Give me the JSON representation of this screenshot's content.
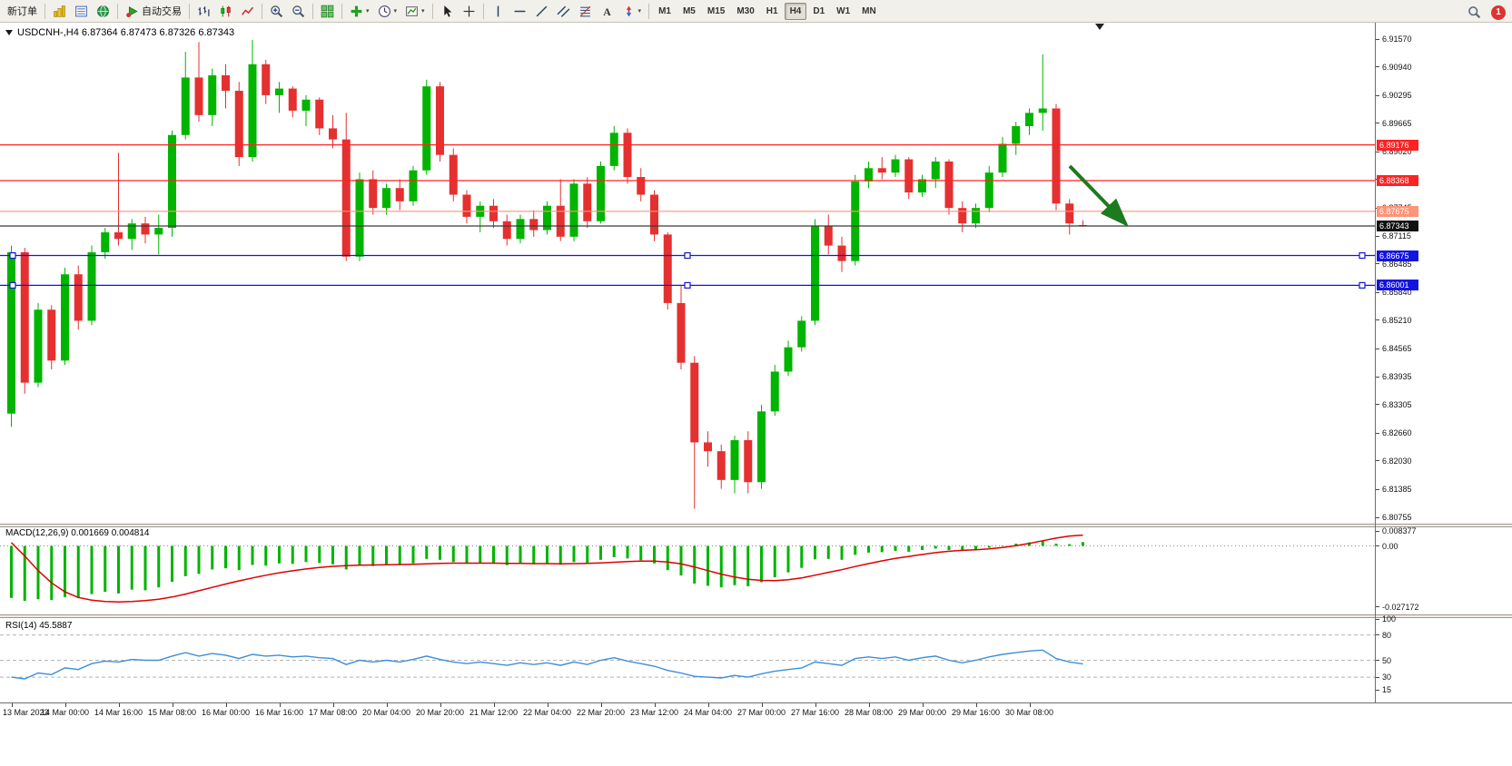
{
  "toolbar": {
    "items": [
      {
        "kind": "text",
        "name": "new-order-button",
        "label": "新订单"
      },
      {
        "kind": "sep"
      },
      {
        "kind": "icon",
        "name": "profiles-button",
        "icon": "i-profiles"
      },
      {
        "kind": "icon",
        "name": "market-watch-button",
        "icon": "i-marketwatch"
      },
      {
        "kind": "icon",
        "name": "navigator-button",
        "icon": "i-navigator"
      },
      {
        "kind": "sep"
      },
      {
        "kind": "icon",
        "name": "autotrading-button",
        "icon": "i-autotrading",
        "label": "自动交易"
      },
      {
        "kind": "sep"
      },
      {
        "kind": "icon",
        "name": "bar-chart-button",
        "icon": "i-bars"
      },
      {
        "kind": "icon",
        "name": "candlestick-chart-button",
        "icon": "i-candles"
      },
      {
        "kind": "icon",
        "name": "line-chart-button",
        "icon": "i-linechart"
      },
      {
        "kind": "sep"
      },
      {
        "kind": "icon",
        "name": "zoom-in-button",
        "icon": "i-zoomin"
      },
      {
        "kind": "icon",
        "name": "zoom-out-button",
        "icon": "i-zoomout"
      },
      {
        "kind": "sep"
      },
      {
        "kind": "icon",
        "name": "tile-windows-button",
        "icon": "i-tile"
      },
      {
        "kind": "sep"
      },
      {
        "kind": "icon",
        "name": "indicators-button",
        "icon": "i-indicators",
        "caret": true
      },
      {
        "kind": "icon",
        "name": "periods-button",
        "icon": "i-clock",
        "caret": true
      },
      {
        "kind": "icon",
        "name": "templates-button",
        "icon": "i-template",
        "caret": true
      },
      {
        "kind": "sep"
      },
      {
        "kind": "icon",
        "name": "cursor-button",
        "icon": "i-cursor"
      },
      {
        "kind": "icon",
        "name": "crosshair-button",
        "icon": "i-crosshair"
      },
      {
        "kind": "sep"
      },
      {
        "kind": "icon",
        "name": "vertical-line-button",
        "icon": "i-vline"
      },
      {
        "kind": "icon",
        "name": "horizontal-line-button",
        "icon": "i-hline"
      },
      {
        "kind": "icon",
        "name": "trendline-button",
        "icon": "i-trendline"
      },
      {
        "kind": "icon",
        "name": "channel-button",
        "icon": "i-channel"
      },
      {
        "kind": "icon",
        "name": "fibonacci-button",
        "icon": "i-fibo"
      },
      {
        "kind": "icon",
        "name": "text-tool-button",
        "icon": "i-text"
      },
      {
        "kind": "icon",
        "name": "arrows-tool-button",
        "icon": "i-arrows",
        "caret": true
      },
      {
        "kind": "sep"
      }
    ],
    "timeframes": [
      "M1",
      "M5",
      "M15",
      "M30",
      "H1",
      "H4",
      "D1",
      "W1",
      "MN"
    ],
    "active_timeframe": "H4",
    "notification_count": "1"
  },
  "colors": {
    "bull": "#00b400",
    "bear": "#e53030",
    "signal": "#e00000",
    "rsi": "#3d8fd8",
    "line_red": "#ff2222",
    "line_salmon": "#ff9478",
    "line_blue": "#1414e0",
    "line_current": "#3a3a3a",
    "arrow": "#1e7a1e"
  },
  "chart_data": [
    {
      "type": "candlestick",
      "symbol": "USDCNH-",
      "timeframe": "H4",
      "title": "USDCNH-,H4 6.87364 6.87473 6.87326 6.87343",
      "current_bar": {
        "open": 6.87364,
        "high": 6.87473,
        "low": 6.87326,
        "close": 6.87343
      },
      "ylim": [
        6.806,
        6.9182
      ],
      "grid": false,
      "price_ticks": [
        "6.91570",
        "6.90940",
        "6.90295",
        "6.89665",
        "6.89020",
        "6.88390",
        "6.87745",
        "6.87115",
        "6.86485",
        "6.85840",
        "6.85210",
        "6.84565",
        "6.83935",
        "6.83305",
        "6.82660",
        "6.82030",
        "6.81385",
        "6.80755"
      ],
      "x_labels": [
        "13 Mar 2023",
        "14 Mar 00:00",
        "14 Mar 16:00",
        "15 Mar 08:00",
        "16 Mar 00:00",
        "16 Mar 16:00",
        "17 Mar 08:00",
        "20 Mar 04:00",
        "20 Mar 20:00",
        "21 Mar 12:00",
        "22 Mar 04:00",
        "22 Mar 20:00",
        "23 Mar 12:00",
        "24 Mar 04:00",
        "27 Mar 00:00",
        "27 Mar 16:00",
        "28 Mar 08:00",
        "29 Mar 00:00",
        "29 Mar 16:00",
        "30 Mar 08:00"
      ],
      "lines": [
        {
          "name": "resistance-line-1",
          "price": 6.89176,
          "color": "#ff2222",
          "badge": "6.89176"
        },
        {
          "name": "resistance-line-2",
          "price": 6.88368,
          "color": "#ff2222",
          "badge": "6.88368"
        },
        {
          "name": "pivot-line",
          "price": 6.87675,
          "color": "#ff9478",
          "badge": "6.87675"
        },
        {
          "name": "current-price-line",
          "price": 6.87343,
          "color": "#3a3a3a",
          "badge": "6.87343",
          "badge_color": "#111111"
        },
        {
          "name": "support-line-1",
          "price": 6.86675,
          "color": "#1414e0",
          "badge": "6.86675",
          "handles": true
        },
        {
          "name": "support-line-2",
          "price": 6.86001,
          "color": "#1414e0",
          "badge": "6.86001",
          "handles": true
        }
      ],
      "arrow": {
        "color": "#1e7a1e",
        "direction": "down-right"
      },
      "candles": [
        [
          6.831,
          6.869,
          6.828,
          6.8675
        ],
        [
          6.8675,
          6.8685,
          6.8355,
          6.838
        ],
        [
          6.838,
          6.856,
          6.837,
          6.8545
        ],
        [
          6.8545,
          6.8555,
          6.841,
          6.843
        ],
        [
          6.843,
          6.864,
          6.842,
          6.8625
        ],
        [
          6.8625,
          6.8645,
          6.85,
          6.852
        ],
        [
          6.852,
          6.869,
          6.851,
          6.8675
        ],
        [
          6.8675,
          6.873,
          6.866,
          6.872
        ],
        [
          6.872,
          6.89,
          6.869,
          6.8705
        ],
        [
          6.8705,
          6.875,
          6.868,
          6.874
        ],
        [
          6.874,
          6.8755,
          6.8695,
          6.8715
        ],
        [
          6.8715,
          6.876,
          6.867,
          6.873
        ],
        [
          6.873,
          6.895,
          6.871,
          6.894
        ],
        [
          6.894,
          6.9128,
          6.893,
          6.907
        ],
        [
          6.907,
          6.915,
          6.897,
          6.8985
        ],
        [
          6.8985,
          6.909,
          6.896,
          6.9075
        ],
        [
          6.9075,
          6.91,
          6.9,
          6.904
        ],
        [
          6.904,
          6.906,
          6.887,
          6.889
        ],
        [
          6.889,
          6.9155,
          6.888,
          6.91
        ],
        [
          6.91,
          6.911,
          6.901,
          6.903
        ],
        [
          6.903,
          6.906,
          6.899,
          6.9045
        ],
        [
          6.9045,
          6.905,
          6.898,
          6.8995
        ],
        [
          6.8995,
          6.903,
          6.896,
          6.902
        ],
        [
          6.902,
          6.9025,
          6.894,
          6.8955
        ],
        [
          6.8955,
          6.8985,
          6.891,
          6.893
        ],
        [
          6.893,
          6.899,
          6.8655,
          6.8665
        ],
        [
          6.8665,
          6.8855,
          6.8655,
          6.884
        ],
        [
          6.884,
          6.886,
          6.876,
          6.8775
        ],
        [
          6.8775,
          6.883,
          6.876,
          6.882
        ],
        [
          6.882,
          6.884,
          6.877,
          6.879
        ],
        [
          6.879,
          6.887,
          6.878,
          6.886
        ],
        [
          6.886,
          6.9065,
          6.885,
          6.905
        ],
        [
          6.905,
          6.906,
          6.888,
          6.8895
        ],
        [
          6.8895,
          6.891,
          6.879,
          6.8805
        ],
        [
          6.8805,
          6.8815,
          6.874,
          6.8755
        ],
        [
          6.8755,
          6.879,
          6.872,
          6.878
        ],
        [
          6.878,
          6.8795,
          6.873,
          6.8745
        ],
        [
          6.8745,
          6.876,
          6.869,
          6.8705
        ],
        [
          6.8705,
          6.876,
          6.8695,
          6.875
        ],
        [
          6.875,
          6.877,
          6.871,
          6.8725
        ],
        [
          6.8725,
          6.879,
          6.8715,
          6.878
        ],
        [
          6.878,
          6.884,
          6.87,
          6.871
        ],
        [
          6.871,
          6.884,
          6.87,
          6.883
        ],
        [
          6.883,
          6.8845,
          6.873,
          6.8745
        ],
        [
          6.8745,
          6.888,
          6.874,
          6.887
        ],
        [
          6.887,
          6.896,
          6.886,
          6.8945
        ],
        [
          6.8945,
          6.8955,
          6.883,
          6.8845
        ],
        [
          6.8845,
          6.8865,
          6.879,
          6.8805
        ],
        [
          6.8805,
          6.8815,
          6.87,
          6.8715
        ],
        [
          6.8715,
          6.872,
          6.8545,
          6.856
        ],
        [
          6.856,
          6.86,
          6.841,
          6.8425
        ],
        [
          6.8425,
          6.844,
          6.8095,
          6.8245
        ],
        [
          6.8245,
          6.827,
          6.819,
          6.8225
        ],
        [
          6.8225,
          6.824,
          6.814,
          6.816
        ],
        [
          6.816,
          6.826,
          6.813,
          6.825
        ],
        [
          6.825,
          6.827,
          6.813,
          6.8155
        ],
        [
          6.8155,
          6.833,
          6.814,
          6.8315
        ],
        [
          6.8315,
          6.842,
          6.8305,
          6.8405
        ],
        [
          6.8405,
          6.8475,
          6.8395,
          6.846
        ],
        [
          6.846,
          6.853,
          6.845,
          6.852
        ],
        [
          6.852,
          6.875,
          6.851,
          6.8735
        ],
        [
          6.8735,
          6.876,
          6.867,
          6.869
        ],
        [
          6.869,
          6.871,
          6.863,
          6.8655
        ],
        [
          6.8655,
          6.885,
          6.8645,
          6.8835
        ],
        [
          6.8835,
          6.888,
          6.882,
          6.8865
        ],
        [
          6.8865,
          6.889,
          6.884,
          6.8855
        ],
        [
          6.8855,
          6.8895,
          6.8845,
          6.8885
        ],
        [
          6.8885,
          6.889,
          6.8795,
          6.881
        ],
        [
          6.881,
          6.885,
          6.88,
          6.884
        ],
        [
          6.884,
          6.889,
          6.882,
          6.888
        ],
        [
          6.888,
          6.8885,
          6.876,
          6.8775
        ],
        [
          6.8775,
          6.879,
          6.872,
          6.874
        ],
        [
          6.874,
          6.8785,
          6.873,
          6.8775
        ],
        [
          6.8775,
          6.887,
          6.8765,
          6.8855
        ],
        [
          6.8855,
          6.8935,
          6.8845,
          6.892
        ],
        [
          6.892,
          6.897,
          6.8895,
          6.896
        ],
        [
          6.896,
          6.9,
          6.894,
          6.899
        ],
        [
          6.899,
          6.9122,
          6.895,
          6.9
        ],
        [
          6.9,
          6.901,
          6.877,
          6.8785
        ],
        [
          6.8785,
          6.8795,
          6.8715,
          6.874
        ],
        [
          6.87364,
          6.87473,
          6.87326,
          6.87343
        ]
      ]
    },
    {
      "type": "bar",
      "name": "MACD",
      "label": "MACD(12,26,9) 0.001669 0.004814",
      "current": {
        "macd": 0.001669,
        "signal": 0.004814
      },
      "axis": [
        {
          "label": "0.008377",
          "value": 0.008377
        },
        {
          "label": "0.00",
          "value": 0
        },
        {
          "label": "-0.027172",
          "value": -0.027172
        }
      ],
      "histogram": [
        -0.0232,
        -0.0245,
        -0.0238,
        -0.0242,
        -0.0228,
        -0.0232,
        -0.0215,
        -0.0205,
        -0.0212,
        -0.0195,
        -0.0198,
        -0.0185,
        -0.016,
        -0.0135,
        -0.0125,
        -0.0105,
        -0.01,
        -0.0108,
        -0.0085,
        -0.0088,
        -0.0078,
        -0.008,
        -0.0072,
        -0.0076,
        -0.0082,
        -0.0105,
        -0.0088,
        -0.009,
        -0.0085,
        -0.0086,
        -0.0078,
        -0.0058,
        -0.0062,
        -0.0072,
        -0.008,
        -0.0076,
        -0.008,
        -0.0086,
        -0.008,
        -0.0082,
        -0.0078,
        -0.0084,
        -0.0072,
        -0.0076,
        -0.0062,
        -0.005,
        -0.0056,
        -0.0064,
        -0.0078,
        -0.0108,
        -0.0132,
        -0.0168,
        -0.0178,
        -0.0185,
        -0.0175,
        -0.018,
        -0.0162,
        -0.014,
        -0.0118,
        -0.0098,
        -0.006,
        -0.0058,
        -0.0062,
        -0.004,
        -0.003,
        -0.0028,
        -0.0022,
        -0.0026,
        -0.0018,
        -0.0012,
        -0.0018,
        -0.0022,
        -0.0016,
        -0.0008,
        0.0002,
        0.001,
        0.0016,
        0.0024,
        0.001,
        0.0008,
        0.0017
      ],
      "signal": [
        0.0015,
        -0.0045,
        -0.011,
        -0.0165,
        -0.0205,
        -0.023,
        -0.0242,
        -0.0248,
        -0.025,
        -0.0248,
        -0.0244,
        -0.0238,
        -0.0228,
        -0.0215,
        -0.02,
        -0.0185,
        -0.017,
        -0.0156,
        -0.0143,
        -0.0131,
        -0.012,
        -0.0111,
        -0.0103,
        -0.0096,
        -0.0091,
        -0.0088,
        -0.0086,
        -0.0085,
        -0.0084,
        -0.0083,
        -0.0082,
        -0.008,
        -0.0078,
        -0.0077,
        -0.0077,
        -0.0077,
        -0.0077,
        -0.0078,
        -0.0078,
        -0.0079,
        -0.0079,
        -0.008,
        -0.0079,
        -0.0078,
        -0.0076,
        -0.0073,
        -0.007,
        -0.0068,
        -0.0068,
        -0.0072,
        -0.008,
        -0.0094,
        -0.011,
        -0.0126,
        -0.0139,
        -0.0149,
        -0.0154,
        -0.0155,
        -0.0151,
        -0.0143,
        -0.0131,
        -0.0118,
        -0.0106,
        -0.0092,
        -0.0079,
        -0.0067,
        -0.0056,
        -0.0047,
        -0.0038,
        -0.003,
        -0.0024,
        -0.002,
        -0.0017,
        -0.0013,
        -0.0007,
        0.0001,
        0.0011,
        0.0023,
        0.0035,
        0.0044,
        0.0048
      ]
    },
    {
      "type": "line",
      "name": "RSI",
      "label": "RSI(14) 45.5887",
      "current": 45.5887,
      "axis": [
        {
          "label": "100",
          "value": 100
        },
        {
          "label": "80",
          "value": 80
        },
        {
          "label": "50",
          "value": 50
        },
        {
          "label": "30",
          "value": 30
        },
        {
          "label": "15",
          "value": 15
        }
      ],
      "levels": [
        80,
        50,
        30
      ],
      "values": [
        30,
        28,
        35,
        33,
        41,
        39,
        46,
        49,
        48,
        51,
        50,
        50,
        55,
        59,
        55,
        58,
        56,
        52,
        57,
        55,
        56,
        54,
        55,
        53,
        52,
        45,
        50,
        48,
        50,
        48,
        51,
        55,
        51,
        48,
        46,
        48,
        46,
        44,
        47,
        45,
        47,
        44,
        48,
        45,
        50,
        53,
        49,
        46,
        43,
        38,
        35,
        31,
        30,
        29,
        32,
        30,
        34,
        37,
        39,
        41,
        48,
        46,
        44,
        52,
        54,
        52,
        54,
        50,
        53,
        55,
        50,
        47,
        50,
        54,
        57,
        59,
        61,
        62,
        52,
        48,
        45.59
      ]
    }
  ]
}
